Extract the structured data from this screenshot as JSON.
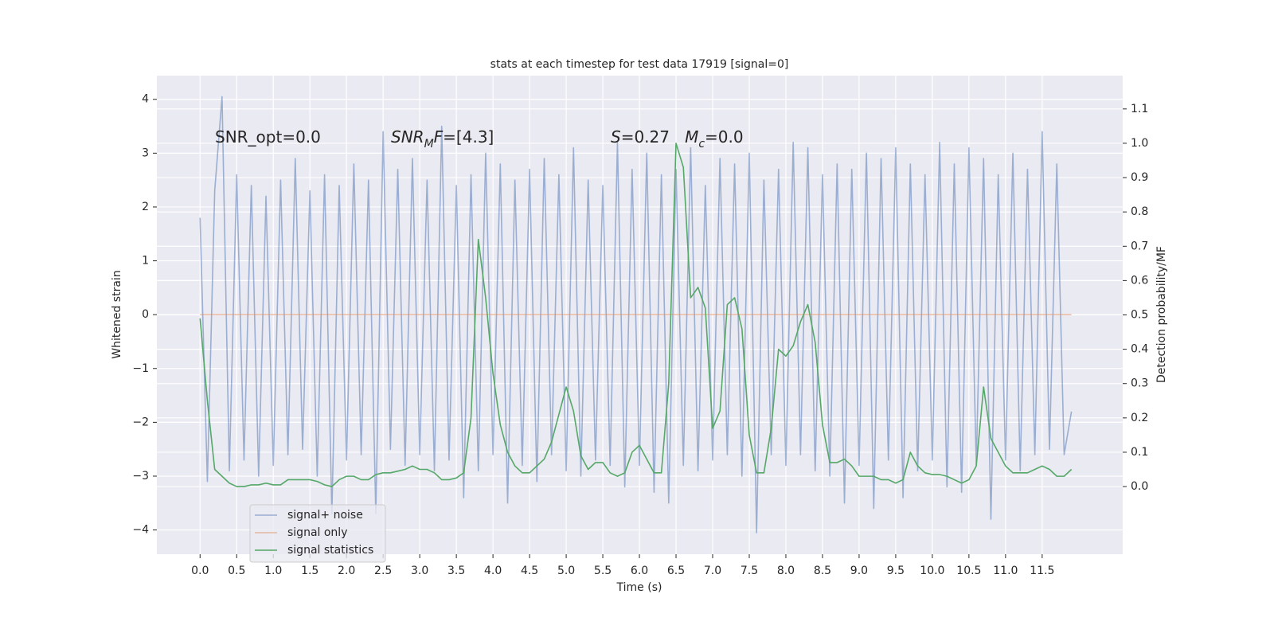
{
  "chart_data": {
    "type": "line",
    "title": "stats at each timestep for test data 17919 [signal=0]",
    "xlabel": "Time (s)",
    "ylabel": "Whitened strain",
    "y2label": "Detection probability/MF",
    "annotations": [
      [
        {
          "text": "SNR_opt=0.0"
        }
      ],
      [
        {
          "text": "SNR",
          "italic": true
        },
        {
          "text": "M",
          "italic": true,
          "sub": true
        },
        {
          "text": "F",
          "italic": true
        },
        {
          "text": "=[4.3]"
        }
      ],
      [
        {
          "text": "S",
          "italic": true
        },
        {
          "text": "=0.27   "
        },
        {
          "text": "M",
          "italic": true
        },
        {
          "text": "c",
          "italic": true,
          "sub": true
        },
        {
          "text": "=0.0"
        }
      ]
    ],
    "x": [
      0.0,
      0.1,
      0.2,
      0.3,
      0.4,
      0.5,
      0.6,
      0.7,
      0.8,
      0.9,
      1.0,
      1.1,
      1.2,
      1.3,
      1.4,
      1.5,
      1.6,
      1.7,
      1.8,
      1.9,
      2.0,
      2.1,
      2.2,
      2.3,
      2.4,
      2.5,
      2.6,
      2.7,
      2.8,
      2.9,
      3.0,
      3.1,
      3.2,
      3.3,
      3.4,
      3.5,
      3.6,
      3.7,
      3.8,
      3.9,
      4.0,
      4.1,
      4.2,
      4.3,
      4.4,
      4.5,
      4.6,
      4.7,
      4.8,
      4.9,
      5.0,
      5.1,
      5.2,
      5.3,
      5.4,
      5.5,
      5.6,
      5.7,
      5.8,
      5.9,
      6.0,
      6.1,
      6.2,
      6.3,
      6.4,
      6.5,
      6.6,
      6.7,
      6.8,
      6.9,
      7.0,
      7.1,
      7.2,
      7.3,
      7.4,
      7.5,
      7.6,
      7.7,
      7.8,
      7.9,
      8.0,
      8.1,
      8.2,
      8.3,
      8.4,
      8.5,
      8.6,
      8.7,
      8.8,
      8.9,
      9.0,
      9.1,
      9.2,
      9.3,
      9.4,
      9.5,
      9.6,
      9.7,
      9.8,
      9.9,
      10.0,
      10.1,
      10.2,
      10.3,
      10.4,
      10.5,
      10.6,
      10.7,
      10.8,
      10.9,
      11.0,
      11.1,
      11.2,
      11.3,
      11.4,
      11.5,
      11.6,
      11.7,
      11.8,
      11.9
    ],
    "series": [
      {
        "name": "signal+ noise",
        "color": "#4c72b0",
        "opacity": 0.5,
        "values": [
          1.8,
          -3.1,
          2.3,
          4.05,
          -2.9,
          2.6,
          -2.7,
          2.4,
          -3.0,
          2.2,
          -2.8,
          2.5,
          -2.6,
          2.9,
          -2.5,
          2.3,
          -3.0,
          2.6,
          -3.7,
          2.4,
          -2.7,
          2.8,
          -2.6,
          2.5,
          -3.7,
          3.4,
          -2.5,
          2.7,
          -2.8,
          2.9,
          -2.6,
          2.5,
          -2.9,
          3.5,
          -2.7,
          2.4,
          -3.4,
          2.6,
          -2.9,
          3.0,
          -2.6,
          2.8,
          -3.5,
          2.5,
          -2.8,
          2.7,
          -3.1,
          2.9,
          -2.6,
          2.6,
          -2.9,
          3.1,
          -3.0,
          2.5,
          -2.7,
          2.4,
          -2.8,
          3.2,
          -3.2,
          2.7,
          -2.8,
          3.0,
          -3.3,
          2.6,
          -3.5,
          2.7,
          -2.8,
          3.1,
          -2.9,
          2.4,
          -2.7,
          2.9,
          -2.6,
          2.8,
          -3.0,
          3.0,
          -4.05,
          2.5,
          -2.6,
          2.7,
          -2.8,
          3.2,
          -2.6,
          3.1,
          -2.9,
          2.6,
          -3.0,
          2.8,
          -3.5,
          2.7,
          -2.8,
          3.0,
          -3.6,
          2.9,
          -2.7,
          3.1,
          -3.4,
          2.8,
          -2.9,
          2.6,
          -2.7,
          3.2,
          -3.2,
          2.8,
          -3.3,
          3.1,
          -2.8,
          2.9,
          -3.8,
          2.6,
          -2.7,
          3.0,
          -2.9,
          2.7,
          -2.6,
          3.4,
          -2.5,
          2.8,
          -2.6,
          -1.8
        ]
      },
      {
        "name": "signal only",
        "color": "#dd8452",
        "opacity": 0.5,
        "values": [
          0,
          0,
          0,
          0,
          0,
          0,
          0,
          0,
          0,
          0,
          0,
          0,
          0,
          0,
          0,
          0,
          0,
          0,
          0,
          0,
          0,
          0,
          0,
          0,
          0,
          0,
          0,
          0,
          0,
          0,
          0,
          0,
          0,
          0,
          0,
          0,
          0,
          0,
          0,
          0,
          0,
          0,
          0,
          0,
          0,
          0,
          0,
          0,
          0,
          0,
          0,
          0,
          0,
          0,
          0,
          0,
          0,
          0,
          0,
          0,
          0,
          0,
          0,
          0,
          0,
          0,
          0,
          0,
          0,
          0,
          0,
          0,
          0,
          0,
          0,
          0,
          0,
          0,
          0,
          0,
          0,
          0,
          0,
          0,
          0,
          0,
          0,
          0,
          0,
          0,
          0,
          0,
          0,
          0,
          0,
          0,
          0,
          0,
          0,
          0,
          0,
          0,
          0,
          0,
          0,
          0,
          0,
          0,
          0,
          0,
          0,
          0,
          0,
          0,
          0,
          0,
          0,
          0,
          0,
          0
        ]
      },
      {
        "name": "signal statistics",
        "color": "#55a868",
        "opacity": 1,
        "axis": "y2",
        "values": [
          0.49,
          0.25,
          0.05,
          0.03,
          0.01,
          0.0,
          0.0,
          0.005,
          0.005,
          0.01,
          0.005,
          0.005,
          0.02,
          0.02,
          0.02,
          0.02,
          0.015,
          0.005,
          0.0,
          0.02,
          0.03,
          0.03,
          0.02,
          0.02,
          0.035,
          0.04,
          0.04,
          0.045,
          0.05,
          0.06,
          0.05,
          0.05,
          0.04,
          0.02,
          0.02,
          0.025,
          0.04,
          0.2,
          0.72,
          0.55,
          0.33,
          0.18,
          0.1,
          0.06,
          0.04,
          0.04,
          0.06,
          0.08,
          0.13,
          0.21,
          0.29,
          0.22,
          0.09,
          0.05,
          0.07,
          0.07,
          0.04,
          0.03,
          0.04,
          0.1,
          0.12,
          0.08,
          0.04,
          0.04,
          0.3,
          1.0,
          0.93,
          0.55,
          0.58,
          0.52,
          0.17,
          0.22,
          0.53,
          0.55,
          0.46,
          0.15,
          0.04,
          0.04,
          0.17,
          0.4,
          0.38,
          0.41,
          0.48,
          0.53,
          0.42,
          0.18,
          0.07,
          0.07,
          0.08,
          0.06,
          0.03,
          0.03,
          0.03,
          0.02,
          0.02,
          0.01,
          0.02,
          0.1,
          0.06,
          0.04,
          0.035,
          0.035,
          0.03,
          0.02,
          0.01,
          0.02,
          0.06,
          0.29,
          0.14,
          0.1,
          0.06,
          0.04,
          0.04,
          0.04,
          0.05,
          0.06,
          0.05,
          0.03,
          0.03,
          0.05
        ]
      }
    ],
    "xlim": [
      -0.59,
      12.6
    ],
    "ylim": [
      -4.45,
      4.44
    ],
    "y2lim": [
      -0.197,
      1.197
    ],
    "xticks": [
      {
        "value": 0,
        "label": "0.0"
      },
      {
        "value": 0.5,
        "label": "0.5"
      },
      {
        "value": 1,
        "label": "1.0"
      },
      {
        "value": 1.5,
        "label": "1.5"
      },
      {
        "value": 2,
        "label": "2.0"
      },
      {
        "value": 2.5,
        "label": "2.5"
      },
      {
        "value": 3,
        "label": "3.0"
      },
      {
        "value": 3.5,
        "label": "3.5"
      },
      {
        "value": 4,
        "label": "4.0"
      },
      {
        "value": 4.5,
        "label": "4.5"
      },
      {
        "value": 5,
        "label": "5.0"
      },
      {
        "value": 5.5,
        "label": "5.5"
      },
      {
        "value": 6,
        "label": "6.0"
      },
      {
        "value": 6.5,
        "label": "6.5"
      },
      {
        "value": 7,
        "label": "7.0"
      },
      {
        "value": 7.5,
        "label": "7.5"
      },
      {
        "value": 8,
        "label": "8.0"
      },
      {
        "value": 8.5,
        "label": "8.5"
      },
      {
        "value": 9,
        "label": "9.0"
      },
      {
        "value": 9.5,
        "label": "9.5"
      },
      {
        "value": 10,
        "label": "10.0"
      },
      {
        "value": 10.5,
        "label": "10.5"
      },
      {
        "value": 11,
        "label": "11.0"
      },
      {
        "value": 11.5,
        "label": "11.5"
      }
    ],
    "yticks": [
      {
        "value": -4,
        "label": "−4"
      },
      {
        "value": -3,
        "label": "−3"
      },
      {
        "value": -2,
        "label": "−2"
      },
      {
        "value": -1,
        "label": "−1"
      },
      0,
      1,
      2,
      3,
      4
    ],
    "y2ticks": [
      {
        "value": 0,
        "label": "0.0"
      },
      {
        "value": 0.1,
        "label": "0.1"
      },
      {
        "value": 0.2,
        "label": "0.2"
      },
      {
        "value": 0.3,
        "label": "0.3"
      },
      {
        "value": 0.4,
        "label": "0.4"
      },
      {
        "value": 0.5,
        "label": "0.5"
      },
      {
        "value": 0.6,
        "label": "0.6"
      },
      {
        "value": 0.7,
        "label": "0.7"
      },
      {
        "value": 0.8,
        "label": "0.8"
      },
      {
        "value": 0.9,
        "label": "0.9"
      },
      {
        "value": 1,
        "label": "1.0"
      },
      {
        "value": 1.1,
        "label": "1.1"
      }
    ],
    "grid": true,
    "legend": "lower left"
  }
}
